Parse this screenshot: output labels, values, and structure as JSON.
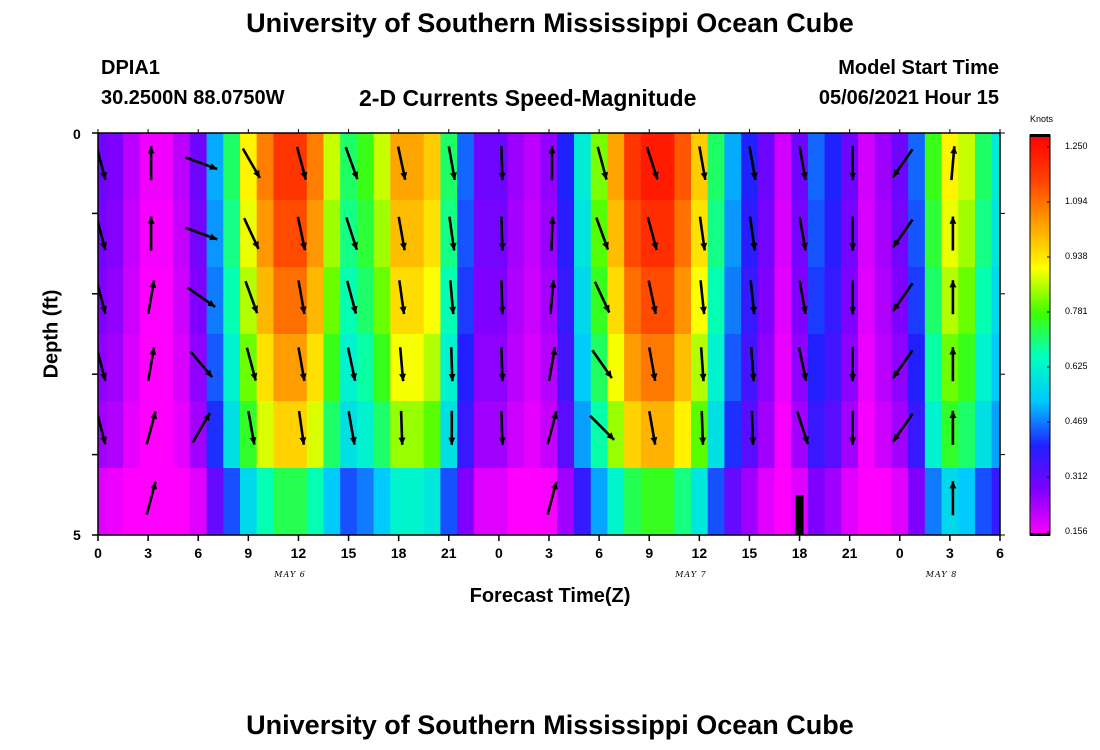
{
  "header": {
    "title": "University of Southern Mississippi Ocean Cube",
    "station": "DPIA1",
    "coords": "30.2500N  88.0750W",
    "chart_title": "2-D Currents Speed-Magnitude",
    "model_start_label": "Model Start Time",
    "model_start_value": "05/06/2021 Hour 15"
  },
  "footer": {
    "title": "University of Southern Mississippi Ocean Cube"
  },
  "colorbar": {
    "unit": "Knots",
    "ticks": [
      "1.250",
      "1.094",
      "0.938",
      "0.781",
      "0.625",
      "0.469",
      "0.312",
      "0.156"
    ],
    "min": 0.156,
    "max": 1.25,
    "colors": [
      "#ff00ff",
      "#8000ff",
      "#2020ff",
      "#00c8ff",
      "#00ffc0",
      "#40ff00",
      "#ffff00",
      "#ffa000",
      "#ff4000",
      "#ff0000"
    ]
  },
  "chart_data": {
    "type": "heatmap",
    "title": "2-D Currents Speed-Magnitude",
    "xlabel": "Forecast Time(Z)",
    "ylabel": "Depth (ft)",
    "ylim": [
      0,
      5
    ],
    "y_ticks": [
      "0",
      "5"
    ],
    "x_ticks": [
      "0",
      "3",
      "6",
      "9",
      "12",
      "15",
      "18",
      "21",
      "0",
      "3",
      "6",
      "9",
      "12",
      "15",
      "18",
      "21",
      "0",
      "3",
      "6"
    ],
    "date_labels": [
      {
        "text": "MAY 6",
        "hour_index": 11.5
      },
      {
        "text": "MAY 7",
        "hour_index": 35.5
      },
      {
        "text": "MAY 8",
        "hour_index": 50.5
      }
    ],
    "x_hours": [
      0,
      1,
      2,
      3,
      4,
      5,
      6,
      7,
      8,
      9,
      10,
      11,
      12,
      13,
      14,
      15,
      16,
      17,
      18,
      19,
      20,
      21,
      22,
      23,
      24,
      25,
      26,
      27,
      28,
      29,
      30,
      31,
      32,
      33,
      34,
      35,
      36,
      37,
      38,
      39,
      40,
      41,
      42,
      43,
      44,
      45,
      46,
      47,
      48,
      49,
      50,
      51,
      52,
      53,
      54
    ],
    "speed_profile_knots": [
      0.3,
      0.28,
      0.22,
      0.17,
      0.17,
      0.22,
      0.3,
      0.5,
      0.7,
      0.9,
      1.05,
      1.15,
      1.15,
      1.05,
      0.85,
      0.7,
      0.75,
      0.85,
      1.0,
      1.0,
      0.95,
      0.7,
      0.45,
      0.3,
      0.3,
      0.25,
      0.22,
      0.26,
      0.4,
      0.6,
      0.8,
      1.0,
      1.15,
      1.2,
      1.2,
      1.1,
      0.95,
      0.7,
      0.5,
      0.4,
      0.3,
      0.2,
      0.3,
      0.45,
      0.4,
      0.3,
      0.2,
      0.25,
      0.3,
      0.45,
      0.75,
      0.9,
      0.85,
      0.7,
      0.6
    ],
    "depth_speed_factors": [
      1.0,
      0.97,
      0.93,
      0.88,
      0.82,
      0.62
    ],
    "vectors": [
      {
        "hour": 0,
        "angles_deg": [
          75,
          75,
          75,
          75,
          75
        ]
      },
      {
        "hour": 3,
        "angles_deg": [
          -90,
          -90,
          -80,
          -80,
          -75,
          -75
        ]
      },
      {
        "hour": 6,
        "angles_deg": [
          20,
          20,
          35,
          50,
          -60
        ]
      },
      {
        "hour": 9,
        "angles_deg": [
          60,
          65,
          70,
          75,
          80
        ]
      },
      {
        "hour": 12,
        "angles_deg": [
          75,
          78,
          80,
          80,
          82
        ]
      },
      {
        "hour": 15,
        "angles_deg": [
          70,
          72,
          75,
          78,
          80
        ]
      },
      {
        "hour": 18,
        "angles_deg": [
          78,
          80,
          82,
          85,
          88
        ]
      },
      {
        "hour": 21,
        "angles_deg": [
          80,
          82,
          85,
          88,
          90
        ]
      },
      {
        "hour": 24,
        "angles_deg": [
          88,
          88,
          88,
          88,
          88
        ]
      },
      {
        "hour": 27,
        "angles_deg": [
          -90,
          -88,
          -85,
          -80,
          -75,
          -75
        ]
      },
      {
        "hour": 30,
        "angles_deg": [
          75,
          70,
          65,
          55,
          45
        ]
      },
      {
        "hour": 33,
        "angles_deg": [
          72,
          75,
          78,
          80,
          80
        ]
      },
      {
        "hour": 36,
        "angles_deg": [
          80,
          82,
          84,
          86,
          88
        ]
      },
      {
        "hour": 39,
        "angles_deg": [
          80,
          82,
          84,
          86,
          88
        ]
      },
      {
        "hour": 42,
        "angles_deg": [
          80,
          80,
          80,
          78,
          72
        ]
      },
      {
        "hour": 45,
        "angles_deg": [
          90,
          90,
          90,
          90,
          90
        ]
      },
      {
        "hour": 48,
        "angles_deg": [
          125,
          125,
          125,
          125,
          125
        ]
      },
      {
        "hour": 51,
        "angles_deg": [
          -85,
          -90,
          -90,
          -90,
          -90,
          -90
        ]
      }
    ]
  }
}
